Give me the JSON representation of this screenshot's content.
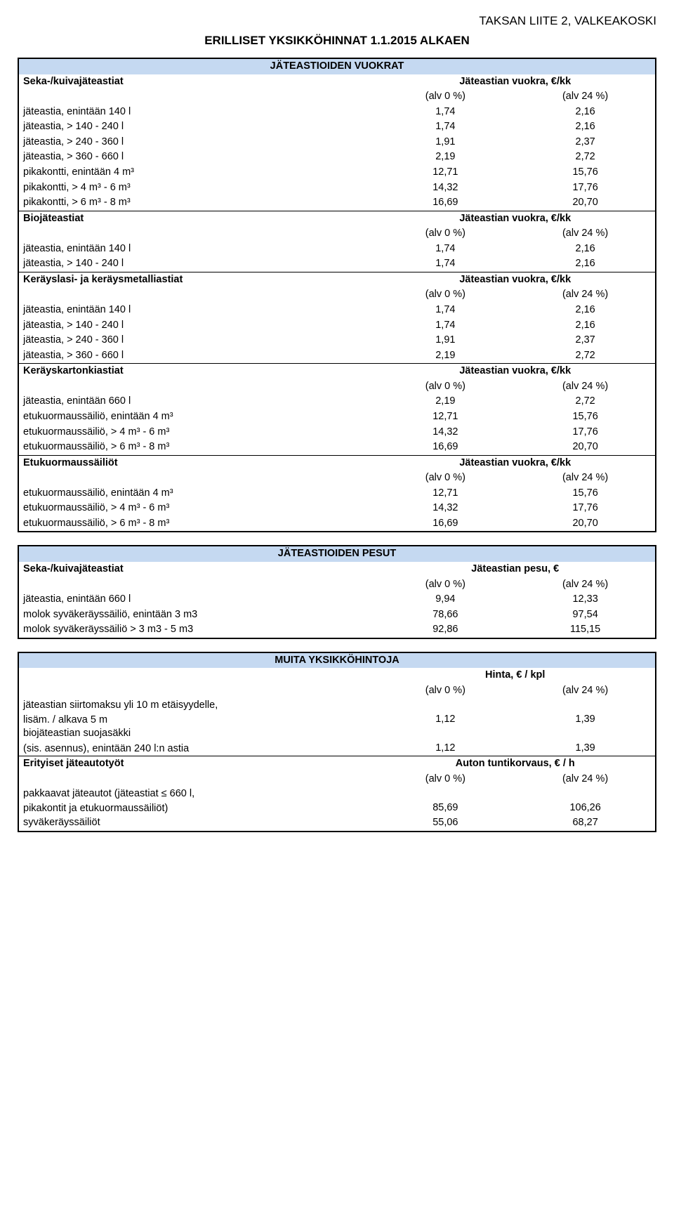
{
  "header": "TAKSAN LIITE 2, VALKEAKOSKI",
  "title": "ERILLISET YKSIKKÖHINNAT 1.1.2015 ALKAEN",
  "table1": {
    "section": "JÄTEASTIOIDEN VUOKRAT",
    "groups": [
      {
        "label": "Seka-/kuivajäteastiat",
        "col_header": "Jäteastian vuokra, €/kk",
        "alv0": "(alv 0 %)",
        "alv24": "(alv 24 %)",
        "rows": [
          {
            "label": "jäteastia, enintään 140 l",
            "v1": "1,74",
            "v2": "2,16"
          },
          {
            "label": "jäteastia, > 140 - 240 l",
            "v1": "1,74",
            "v2": "2,16"
          },
          {
            "label": "jäteastia, > 240 - 360 l",
            "v1": "1,91",
            "v2": "2,37"
          },
          {
            "label": "jäteastia, > 360 - 660 l",
            "v1": "2,19",
            "v2": "2,72"
          },
          {
            "label": "pikakontti, enintään 4 m³",
            "v1": "12,71",
            "v2": "15,76"
          },
          {
            "label": "pikakontti, > 4 m³ - 6 m³",
            "v1": "14,32",
            "v2": "17,76"
          },
          {
            "label": "pikakontti, > 6 m³ - 8 m³",
            "v1": "16,69",
            "v2": "20,70"
          }
        ]
      },
      {
        "label": "Biojäteastiat",
        "col_header": "Jäteastian vuokra, €/kk",
        "alv0": "(alv 0 %)",
        "alv24": "(alv 24 %)",
        "rows": [
          {
            "label": "jäteastia, enintään 140 l",
            "v1": "1,74",
            "v2": "2,16"
          },
          {
            "label": "jäteastia, > 140 - 240 l",
            "v1": "1,74",
            "v2": "2,16"
          }
        ]
      },
      {
        "label": "Keräyslasi- ja keräysmetalliastiat",
        "col_header": "Jäteastian vuokra, €/kk",
        "alv0": "(alv 0 %)",
        "alv24": "(alv 24 %)",
        "rows": [
          {
            "label": "jäteastia, enintään 140 l",
            "v1": "1,74",
            "v2": "2,16"
          },
          {
            "label": "jäteastia, > 140 - 240 l",
            "v1": "1,74",
            "v2": "2,16"
          },
          {
            "label": "jäteastia, > 240 - 360 l",
            "v1": "1,91",
            "v2": "2,37"
          },
          {
            "label": "jäteastia, > 360 - 660 l",
            "v1": "2,19",
            "v2": "2,72"
          }
        ]
      },
      {
        "label": "Keräyskartonkiastiat",
        "col_header": "Jäteastian vuokra, €/kk",
        "alv0": "(alv 0 %)",
        "alv24": "(alv 24 %)",
        "rows": [
          {
            "label": "jäteastia, enintään 660 l",
            "v1": "2,19",
            "v2": "2,72"
          },
          {
            "label": "etukuormaussäiliö, enintään 4 m³",
            "v1": "12,71",
            "v2": "15,76"
          },
          {
            "label": "etukuormaussäiliö, > 4 m³ - 6 m³",
            "v1": "14,32",
            "v2": "17,76"
          },
          {
            "label": "etukuormaussäiliö, > 6 m³ - 8 m³",
            "v1": "16,69",
            "v2": "20,70"
          }
        ]
      },
      {
        "label": "Etukuormaussäiliöt",
        "col_header": "Jäteastian vuokra, €/kk",
        "alv0": "(alv 0 %)",
        "alv24": "(alv 24 %)",
        "rows": [
          {
            "label": "etukuormaussäiliö, enintään 4 m³",
            "v1": "12,71",
            "v2": "15,76"
          },
          {
            "label": "etukuormaussäiliö, > 4 m³ - 6 m³",
            "v1": "14,32",
            "v2": "17,76"
          },
          {
            "label": "etukuormaussäiliö, > 6 m³ - 8 m³",
            "v1": "16,69",
            "v2": "20,70"
          }
        ]
      }
    ]
  },
  "table2": {
    "section": "JÄTEASTIOIDEN PESUT",
    "groups": [
      {
        "label": "Seka-/kuivajäteastiat",
        "col_header": "Jäteastian pesu, €",
        "alv0": "(alv 0 %)",
        "alv24": "(alv 24 %)",
        "rows": [
          {
            "label": "jäteastia, enintään 660 l",
            "v1": "9,94",
            "v2": "12,33"
          },
          {
            "label": "molok syväkeräyssäiliö, enintään 3 m3",
            "v1": "78,66",
            "v2": "97,54"
          },
          {
            "label": "molok syväkeräyssäiliö > 3 m3 - 5 m3",
            "v1": "92,86",
            "v2": "115,15"
          }
        ]
      }
    ]
  },
  "table3": {
    "section": "MUITA YKSIKKÖHINTOJA",
    "top": {
      "col_header": "Hinta, € / kpl",
      "alv0": "(alv 0 %)",
      "alv24": "(alv 24 %)",
      "rows": [
        {
          "label1": "jäteastian siirtomaksu yli 10 m etäisyydelle,",
          "label2": "lisäm. / alkava 5 m",
          "v1": "1,12",
          "v2": "1,39"
        },
        {
          "label1": "biojäteastian suojasäkki",
          "label2": "(sis. asennus), enintään 240 l:n astia",
          "v1": "1,12",
          "v2": "1,39"
        }
      ]
    },
    "bottom": {
      "label": "Erityiset jäteautotyöt",
      "col_header": "Auton tuntikorvaus, € / h",
      "alv0": "(alv 0 %)",
      "alv24": "(alv 24 %)",
      "rows": [
        {
          "label1": "pakkaavat jäteautot (jäteastiat ≤ 660 l,",
          "label2": "pikakontit ja etukuormaussäiliöt)",
          "v1": "85,69",
          "v2": "106,26"
        },
        {
          "label1": "syväkeräyssäiliöt",
          "label2": "",
          "v1": "55,06",
          "v2": "68,27"
        }
      ]
    }
  }
}
